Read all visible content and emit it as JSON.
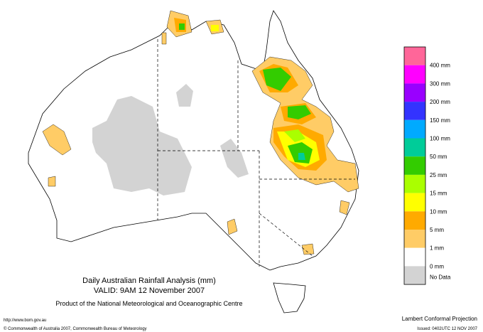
{
  "map": {
    "title": "Daily Australian Rainfall Analysis (mm)",
    "valid": "VALID: 9AM 12 November 2007",
    "product": "Product of the National Meteorological and Oceanographic Centre",
    "url": "http://www.bom.gov.au",
    "copyright": "© Commonwealth of Australia 2007, Commonwealth Bureau of Meteorology",
    "projection": "Lambert Conformal Projection",
    "issued": "Issued: 0402UTC 12 NOV 2007"
  },
  "legend": {
    "labels": [
      "400 mm",
      "300 mm",
      "200 mm",
      "150 mm",
      "100 mm",
      "50 mm",
      "25 mm",
      "15 mm",
      "10 mm",
      "5 mm",
      "1 mm",
      "0 mm",
      "No Data"
    ],
    "colors": [
      "#ff6699",
      "#ff00ff",
      "#9900ff",
      "#3333ff",
      "#00aaff",
      "#00cc99",
      "#33cc00",
      "#aaff00",
      "#ffff00",
      "#ffaa00",
      "#ffcc66",
      "#ffffff",
      "#d3d3d3"
    ]
  }
}
